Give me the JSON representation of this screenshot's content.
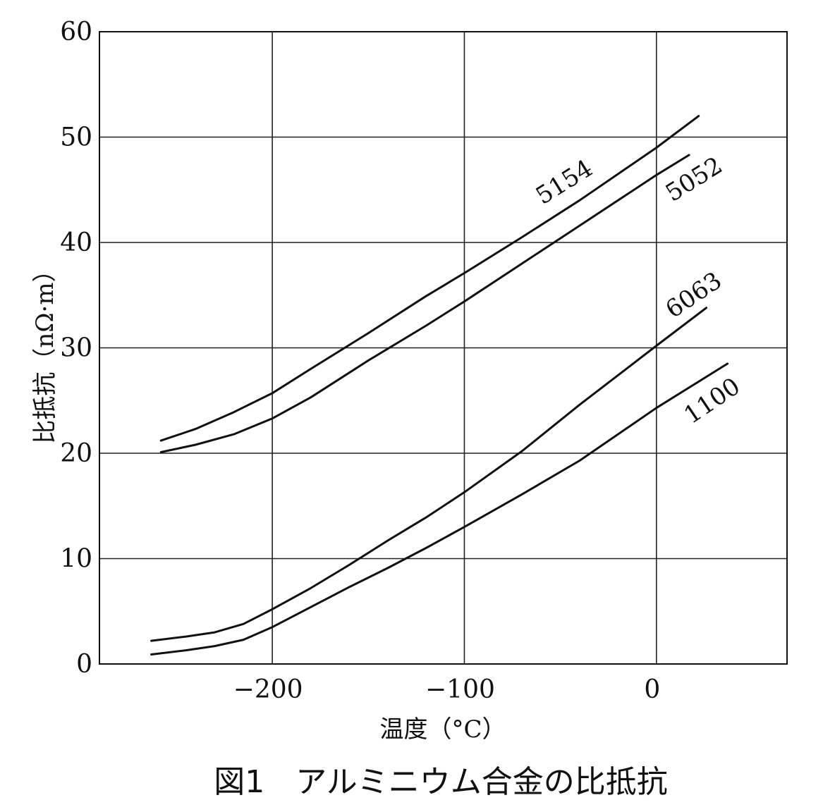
{
  "chart_data": {
    "type": "line",
    "title": "図1　アルミニウム合金の比抵抗",
    "xlabel": "温度（°C）",
    "ylabel": "比抵抗（nΩ·m）",
    "xlim": [
      -290,
      68
    ],
    "ylim": [
      0,
      60
    ],
    "xticks": [
      -200,
      -100,
      0
    ],
    "xtick_labels": [
      "−200",
      "−100",
      "0"
    ],
    "yticks": [
      0,
      10,
      20,
      30,
      40,
      50,
      60
    ],
    "ytick_labels": [
      "0",
      "10",
      "20",
      "30",
      "40",
      "50",
      "60"
    ],
    "grid": true,
    "series": [
      {
        "name": "5154",
        "x": [
          -258,
          -240,
          -220,
          -200,
          -180,
          -150,
          -120,
          -100,
          -70,
          -40,
          0,
          22
        ],
        "y": [
          21.2,
          22.3,
          23.9,
          25.7,
          28.0,
          31.4,
          34.9,
          37.1,
          40.5,
          44.0,
          49.0,
          52.0
        ]
      },
      {
        "name": "5052",
        "x": [
          -258,
          -240,
          -220,
          -200,
          -180,
          -150,
          -120,
          -100,
          -70,
          -40,
          0,
          17
        ],
        "y": [
          20.1,
          20.8,
          21.8,
          23.3,
          25.3,
          28.8,
          32.1,
          34.4,
          38.0,
          41.6,
          46.4,
          48.3
        ]
      },
      {
        "name": "6063",
        "x": [
          -263,
          -245,
          -230,
          -215,
          -200,
          -180,
          -160,
          -140,
          -120,
          -100,
          -70,
          -40,
          0,
          26
        ],
        "y": [
          2.2,
          2.6,
          3.0,
          3.8,
          5.2,
          7.2,
          9.4,
          11.7,
          13.9,
          16.3,
          20.2,
          24.6,
          30.2,
          33.8
        ]
      },
      {
        "name": "1100",
        "x": [
          -263,
          -245,
          -230,
          -215,
          -200,
          -180,
          -160,
          -140,
          -120,
          -100,
          -70,
          -40,
          0,
          37
        ],
        "y": [
          0.9,
          1.3,
          1.7,
          2.3,
          3.5,
          5.4,
          7.3,
          9.1,
          11.0,
          13.0,
          16.1,
          19.3,
          24.3,
          28.5
        ]
      }
    ]
  }
}
